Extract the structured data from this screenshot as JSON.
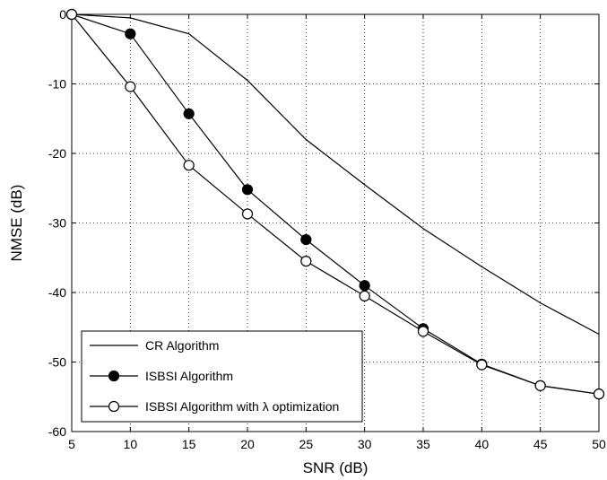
{
  "chart_data": {
    "type": "line",
    "title": "",
    "xlabel": "SNR (dB)",
    "ylabel": "NMSE (dB)",
    "xlim": [
      5,
      50
    ],
    "ylim": [
      -60,
      0
    ],
    "xticks": [
      5,
      10,
      15,
      20,
      25,
      30,
      35,
      40,
      45,
      50
    ],
    "yticks": [
      0,
      -10,
      -20,
      -30,
      -40,
      -50,
      -60
    ],
    "grid": true,
    "legend_position": "bottom-left",
    "series": [
      {
        "name": "CR Algorithm",
        "marker": "none",
        "x": [
          5,
          10,
          15,
          20,
          25,
          30,
          35,
          40,
          45,
          50
        ],
        "y": [
          0,
          -0.5,
          -2.8,
          -9.5,
          -18,
          -24.5,
          -30.8,
          -36.3,
          -41.5,
          -46
        ]
      },
      {
        "name": "ISBSI Algorithm",
        "marker": "filled-circle",
        "x": [
          5,
          10,
          15,
          20,
          25,
          30,
          35,
          40,
          45,
          50
        ],
        "y": [
          0,
          -2.8,
          -14.3,
          -25.2,
          -32.4,
          -39,
          -45.2,
          -50.3,
          -53.4,
          -54.6
        ]
      },
      {
        "name": "ISBSI Algorithm with λ optimization",
        "marker": "open-circle",
        "x": [
          5,
          10,
          15,
          20,
          25,
          30,
          35,
          40,
          45,
          50
        ],
        "y": [
          0,
          -10.4,
          -21.7,
          -28.7,
          -35.5,
          -40.5,
          -45.6,
          -50.4,
          -53.4,
          -54.6
        ]
      }
    ]
  }
}
